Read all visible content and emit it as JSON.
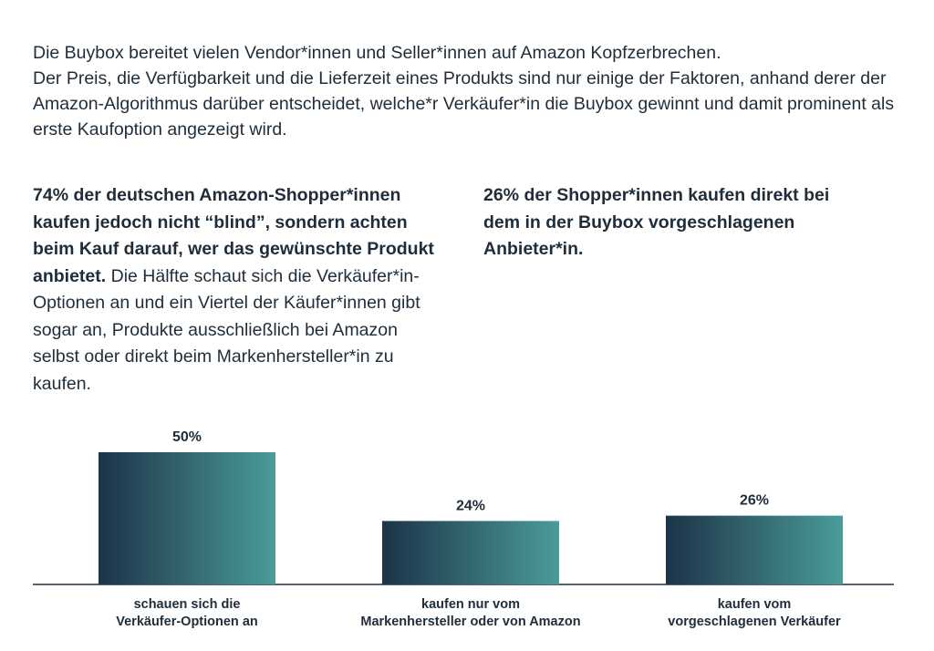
{
  "intro": {
    "line1": "Die Buybox bereitet vielen Vendor*innen und Seller*innen auf Amazon Kopfzerbrechen.",
    "line2": "Der Preis, die Verfügbarkeit und die Lieferzeit eines Produkts sind nur einige der Faktoren, anhand derer der Amazon-Algorithmus darüber entscheidet, welche*r Verkäufer*in die Buybox gewinnt und damit prominent als erste Kaufoption angezeigt wird."
  },
  "left_column": {
    "bold": "74% der deutschen Amazon-Shopper*innen kaufen jedoch nicht “blind”, sondern achten beim Kauf darauf, wer das gewünschte Produkt anbietet.",
    "regular": " Die Hälfte schaut sich die Verkäufer*in-Optionen an und ein Viertel der Käufer*innen gibt sogar an, Produkte ausschließlich bei Amazon selbst oder direkt beim Markenhersteller*in zu kaufen."
  },
  "right_column": {
    "bold": "26% der Shopper*innen kaufen direkt bei dem in der Buybox vorgeschlagenen Anbieter*in."
  },
  "colors": {
    "bar_dark": "#1c3348",
    "bar_light": "#4a9c98",
    "axis": "#1f2d3a"
  },
  "chart_data": {
    "type": "bar",
    "categories": [
      [
        "schauen sich die",
        "Verkäufer-Optionen an"
      ],
      [
        "kaufen nur vom",
        "Markenhersteller oder von Amazon"
      ],
      [
        "kaufen vom",
        "vorgeschlagenen Verkäufer"
      ]
    ],
    "values": [
      50,
      24,
      26
    ],
    "value_labels": [
      "50%",
      "24%",
      "26%"
    ],
    "unit": "%",
    "title": "",
    "xlabel": "",
    "ylabel": "",
    "ylim": [
      0,
      50
    ],
    "grid": false,
    "legend": "none"
  }
}
